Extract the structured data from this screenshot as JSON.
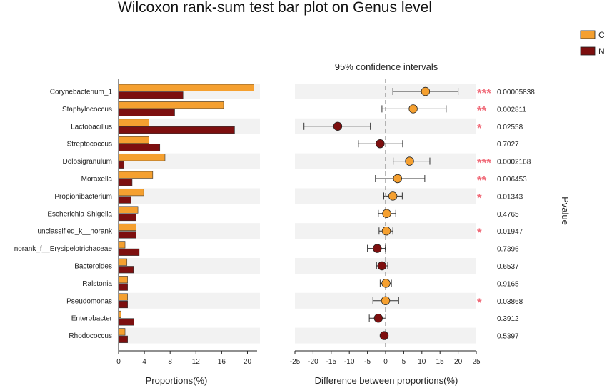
{
  "colors": {
    "C": "#f5a030",
    "N": "#7d0f0f",
    "band": "#f2f2f2",
    "sig": "#f06a78",
    "dashed": "#888888"
  },
  "chart_data": {
    "type": "bar",
    "title": "Wilcoxon rank-sum test bar plot on Genus level",
    "left_panel": {
      "xlabel": "Proportions(%)",
      "xlim": [
        0,
        21.5
      ],
      "ticks": [
        "0",
        "4",
        "8",
        "12",
        "16",
        "20"
      ],
      "tick_values": [
        0,
        4,
        8,
        12,
        16,
        20
      ]
    },
    "right_panel": {
      "subtitle": "95% confidence intervals",
      "xlabel": "Difference between proportions(%)",
      "xlim": [
        -25,
        25
      ],
      "ticks": [
        "-25",
        "-20",
        "-15",
        "-10",
        "-5",
        "0",
        "5",
        "10",
        "15",
        "20",
        "25"
      ],
      "tick_values": [
        -25,
        -20,
        -15,
        -10,
        -5,
        0,
        5,
        10,
        15,
        20,
        25
      ]
    },
    "pvalue_label": "Pvalue",
    "legend": {
      "position": "top-right",
      "items": [
        {
          "key": "C",
          "label": "C"
        },
        {
          "key": "N",
          "label": "N"
        }
      ]
    },
    "categories": [
      "Corynebacterium_1",
      "Staphylococcus",
      "Lactobacillus",
      "Streptococcus",
      "Dolosigranulum",
      "Moraxella",
      "Propionibacterium",
      "Escherichia-Shigella",
      "unclassified_k__norank",
      "norank_f__Erysipelotrichaceae",
      "Bacteroides",
      "Ralstonia",
      "Pseudomonas",
      "Enterobacter",
      "Rhodococcus"
    ],
    "series": [
      {
        "name": "C",
        "values": [
          21.0,
          16.3,
          4.7,
          4.7,
          7.2,
          5.3,
          3.9,
          3.0,
          2.7,
          1.0,
          1.3,
          1.4,
          1.4,
          0.4,
          1.0
        ]
      },
      {
        "name": "N",
        "values": [
          10.0,
          8.7,
          18.0,
          6.4,
          0.8,
          2.1,
          1.9,
          2.7,
          2.7,
          3.2,
          2.3,
          1.4,
          1.4,
          2.4,
          1.4
        ]
      }
    ],
    "differences": {
      "estimate": [
        11.0,
        7.6,
        -13.2,
        -1.5,
        6.6,
        3.3,
        2.0,
        0.3,
        0.2,
        -2.3,
        -1.0,
        0.1,
        0.0,
        -2.0,
        -0.4
      ],
      "ci_low": [
        2.0,
        -1.0,
        -22.5,
        -7.5,
        2.1,
        -2.8,
        -0.5,
        -2.0,
        -1.8,
        -5.0,
        -2.5,
        -1.5,
        -3.5,
        -4.5,
        -1.0
      ],
      "ci_high": [
        20.0,
        16.7,
        -4.2,
        4.7,
        12.2,
        10.8,
        4.6,
        2.8,
        2.0,
        -0.1,
        0.6,
        1.6,
        3.6,
        0.1,
        0.4
      ],
      "higher_group": [
        "C",
        "C",
        "N",
        "N",
        "C",
        "C",
        "C",
        "C",
        "C",
        "N",
        "N",
        "C",
        "C",
        "N",
        "N"
      ]
    },
    "pvalues": [
      "0.00005838",
      "0.002811",
      "0.02558",
      "0.7027",
      "0.0002168",
      "0.006453",
      "0.01343",
      "0.4765",
      "0.01947",
      "0.7396",
      "0.6537",
      "0.9165",
      "0.03868",
      "0.3912",
      "0.5397"
    ],
    "significance": [
      "***",
      "**",
      "*",
      "",
      "***",
      "**",
      "*",
      "",
      "*",
      "",
      "",
      "",
      "*",
      "",
      ""
    ]
  }
}
